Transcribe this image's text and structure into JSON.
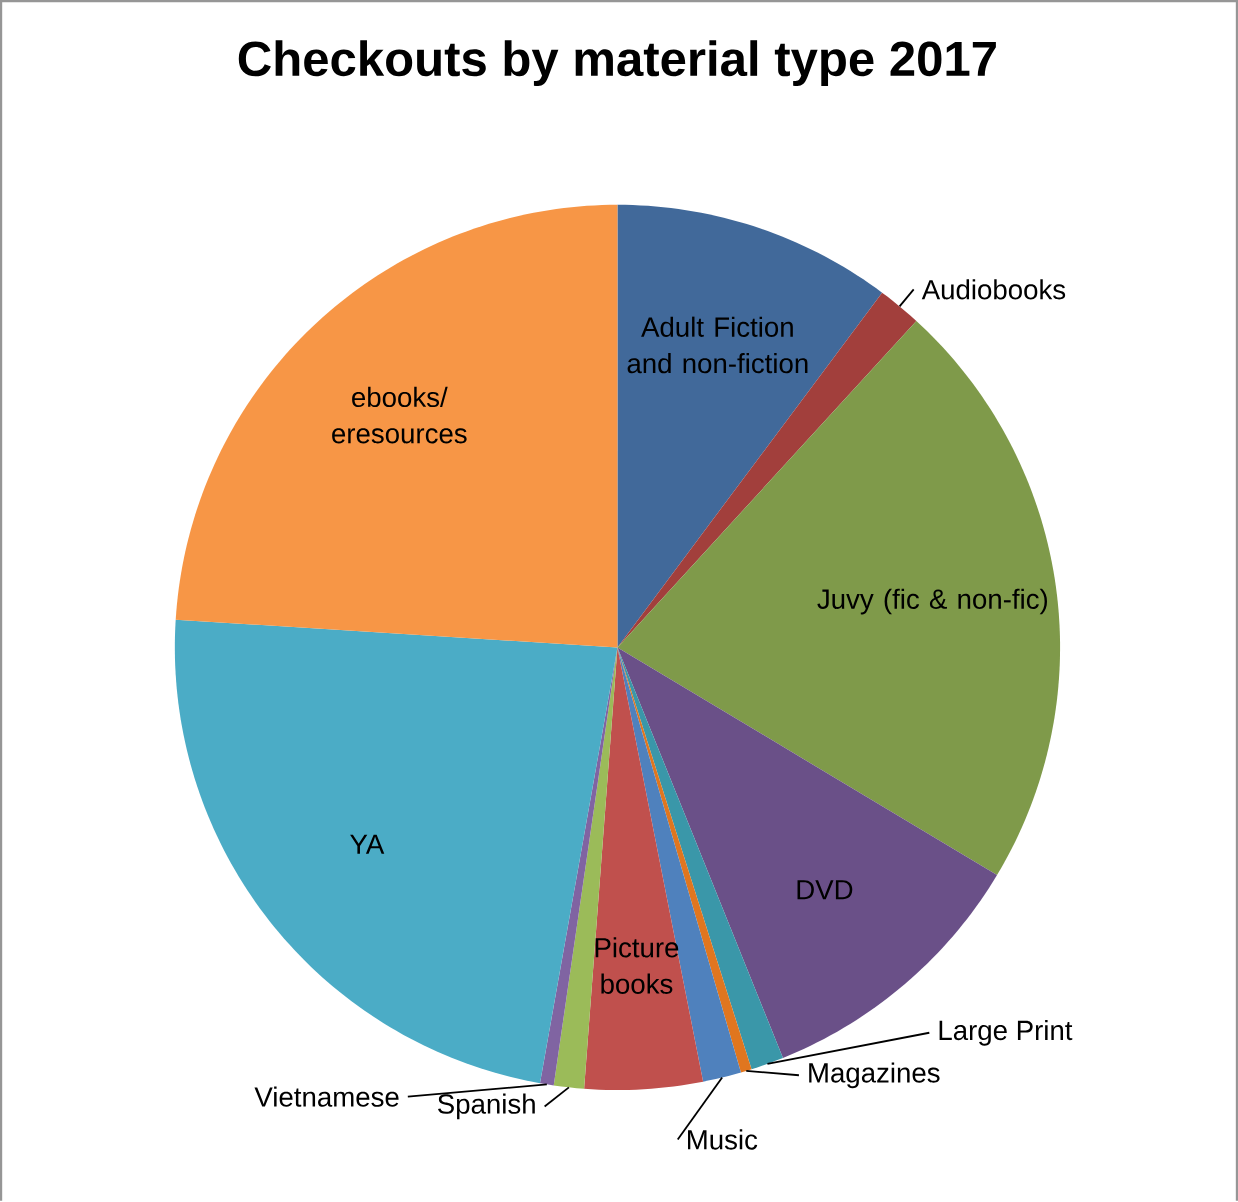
{
  "chart_data": {
    "type": "pie",
    "title": "Checkouts by material type 2017",
    "categories": [
      "Adult Fiction and non-fiction",
      "Audiobooks",
      "Juvy (fic & non-fic)",
      "DVD",
      "Large Print",
      "Magazines",
      "Music",
      "Picture books",
      "Spanish",
      "Vietnamese",
      "YA",
      "ebooks/ eresources"
    ],
    "values": [
      10.2,
      1.6,
      21.8,
      10.3,
      1.2,
      0.4,
      1.4,
      4.3,
      1.1,
      0.5,
      23.2,
      24.0
    ],
    "colors": [
      "#41699a",
      "#a23f3c",
      "#7f9a4a",
      "#6a5088",
      "#3a97a9",
      "#e0761f",
      "#4f81bd",
      "#c0504d",
      "#9bbb59",
      "#8064a2",
      "#4bacc6",
      "#f79646"
    ]
  }
}
